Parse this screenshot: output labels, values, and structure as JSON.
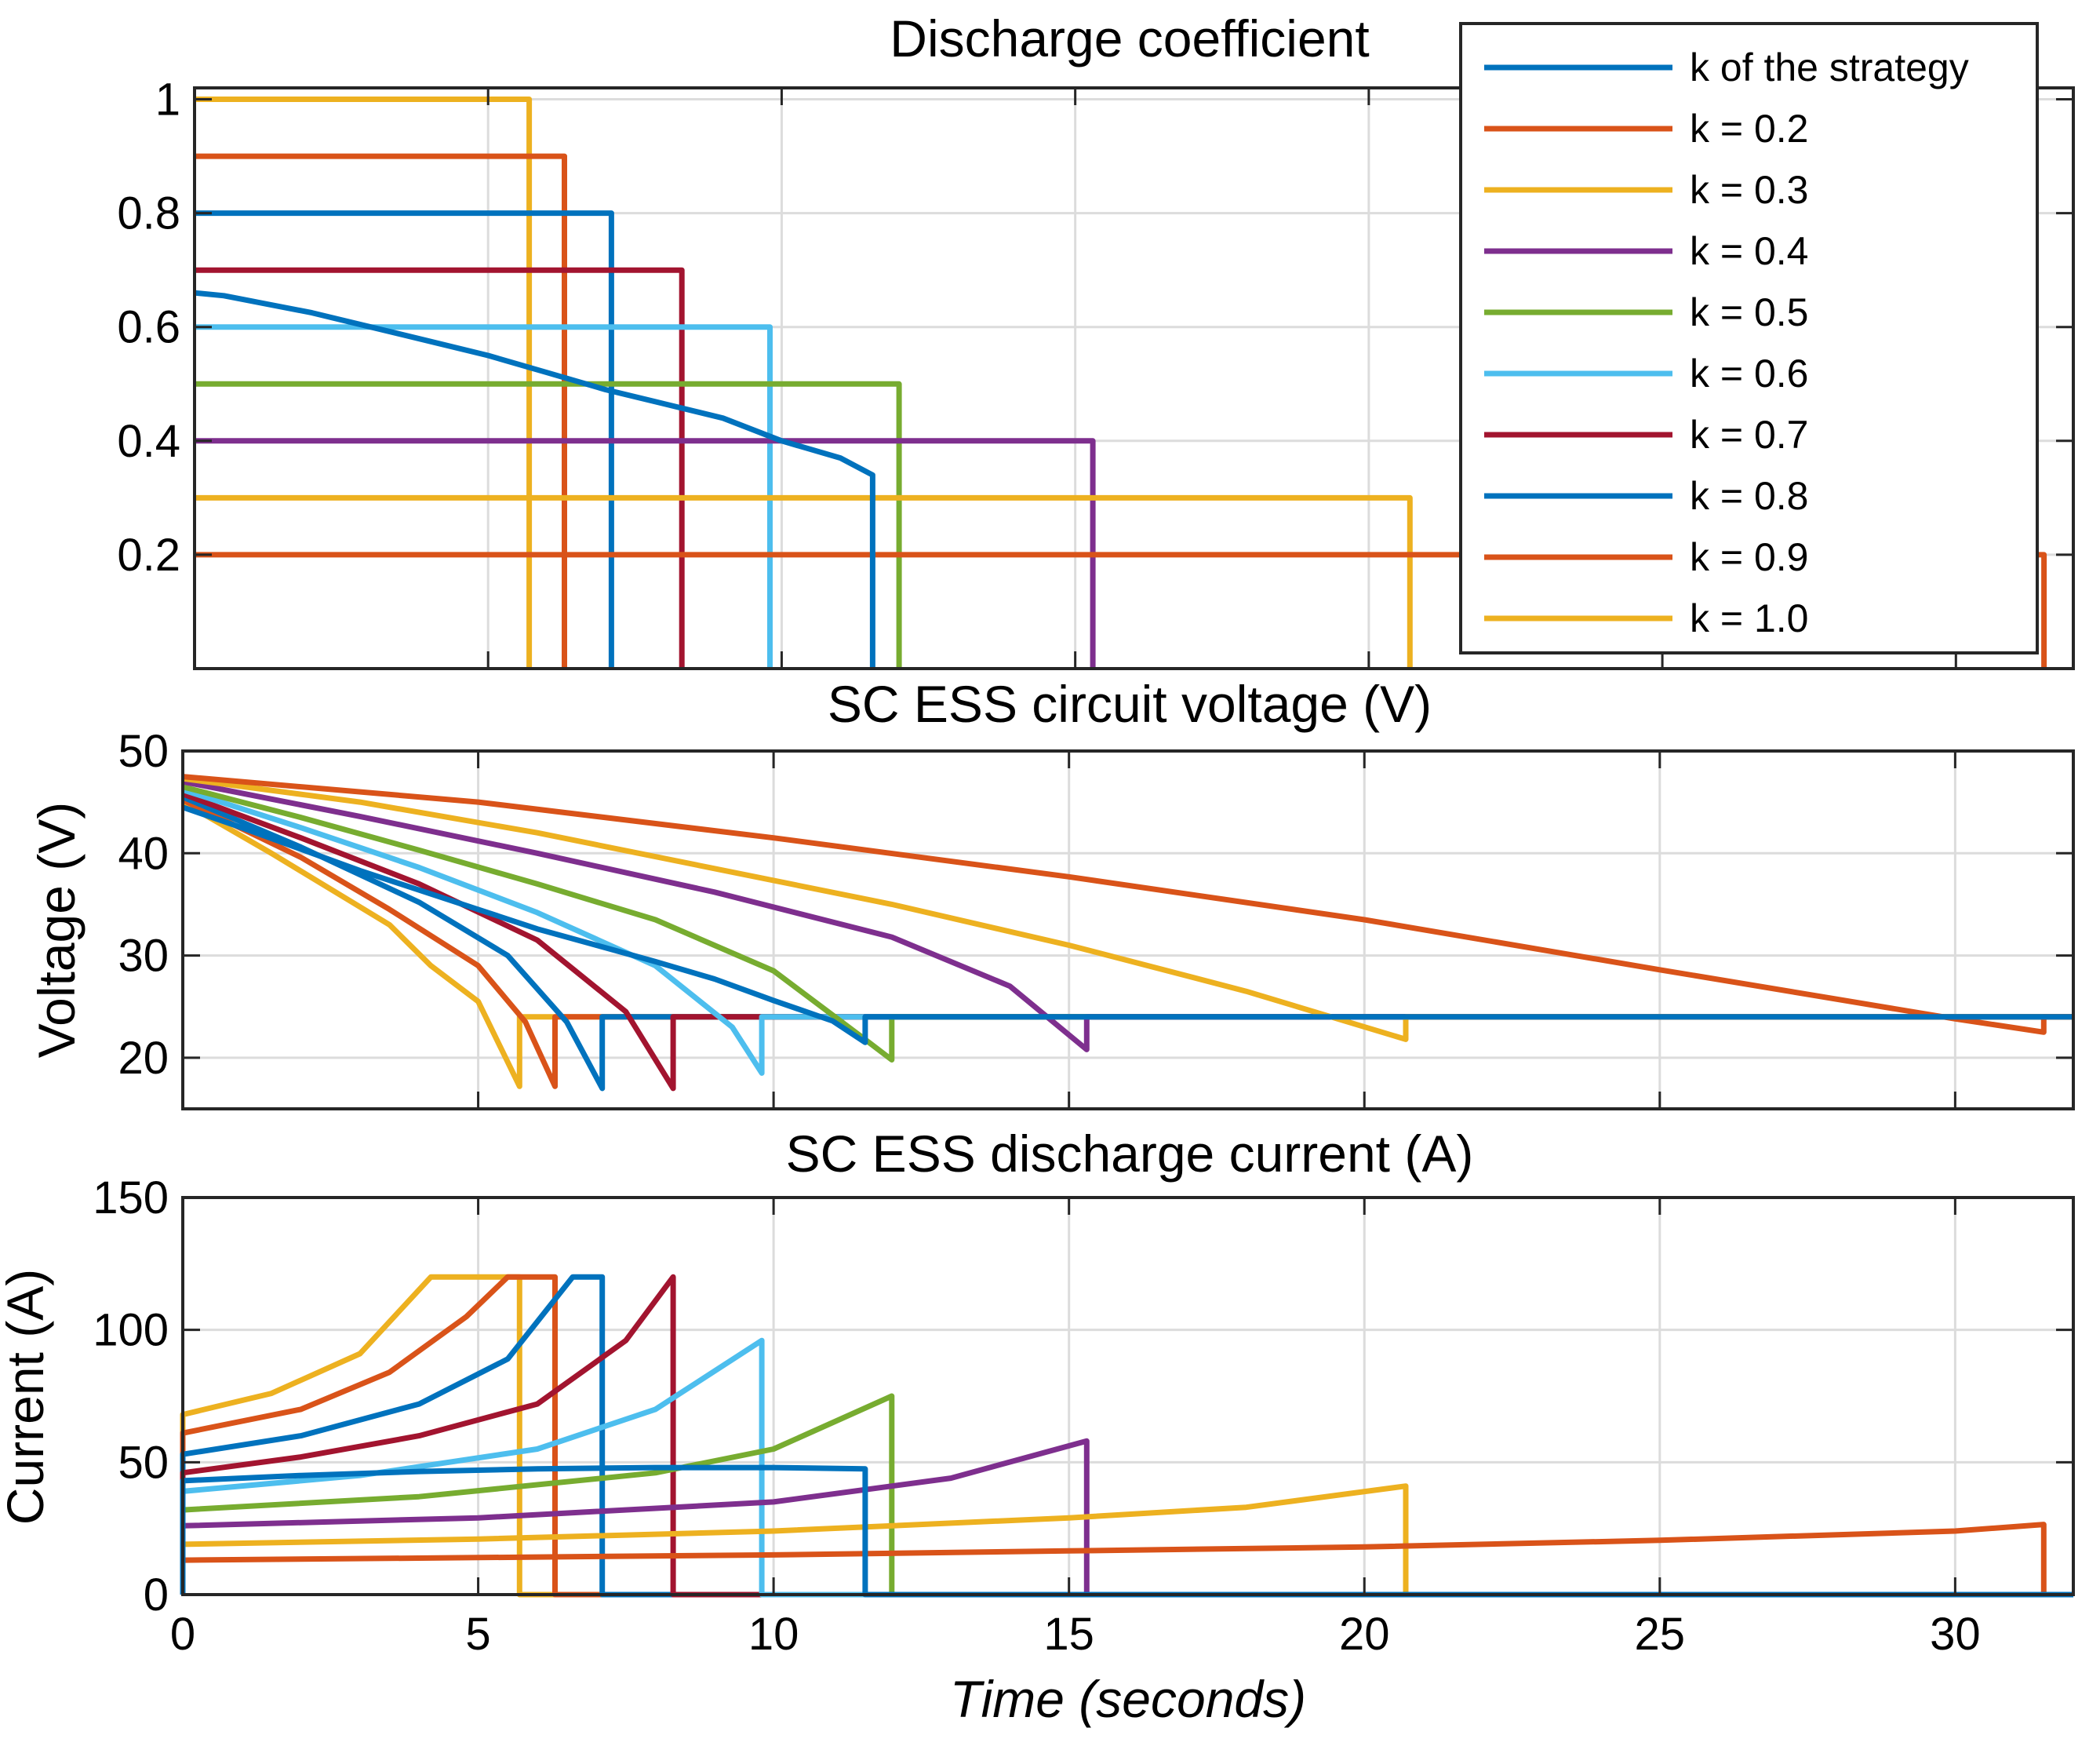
{
  "chart_data": [
    {
      "type": "line",
      "title": "Discharge coefficient",
      "xlabel": "",
      "ylabel": "",
      "xlim": [
        0,
        32
      ],
      "ylim": [
        0,
        1.02
      ],
      "xticks": [
        0,
        5,
        10,
        15,
        20,
        25,
        30
      ],
      "xtick_labels_visible": false,
      "yticks": [
        0.2,
        0.4,
        0.6,
        0.8,
        1
      ],
      "ytick_labels": [
        "0.2",
        "0.4",
        "0.6",
        "0.8",
        "1"
      ],
      "grid": true,
      "legend_position": "top-right",
      "series": [
        {
          "name": "k of the strategy",
          "color": "#0072BD",
          "points": [
            [
              0,
              0.66
            ],
            [
              0.5,
              0.655
            ],
            [
              1,
              0.645
            ],
            [
              2,
              0.625
            ],
            [
              3,
              0.6
            ],
            [
              4,
              0.575
            ],
            [
              5,
              0.55
            ],
            [
              6,
              0.52
            ],
            [
              7,
              0.49
            ],
            [
              8,
              0.465
            ],
            [
              9,
              0.44
            ],
            [
              10,
              0.4
            ],
            [
              11,
              0.37
            ],
            [
              11.55,
              0.34
            ],
            [
              11.55,
              0
            ]
          ]
        },
        {
          "name": "k = 0.2",
          "color": "#D95319",
          "points": [
            [
              0,
              0.2
            ],
            [
              31.5,
              0.2
            ],
            [
              31.5,
              0
            ]
          ]
        },
        {
          "name": "k = 0.3",
          "color": "#EDB120",
          "points": [
            [
              0,
              0.3
            ],
            [
              20.7,
              0.3
            ],
            [
              20.7,
              0
            ]
          ]
        },
        {
          "name": "k = 0.4",
          "color": "#7E2F8E",
          "points": [
            [
              0,
              0.4
            ],
            [
              15.3,
              0.4
            ],
            [
              15.3,
              0
            ]
          ]
        },
        {
          "name": "k = 0.5",
          "color": "#77AC30",
          "points": [
            [
              0,
              0.5
            ],
            [
              12,
              0.5
            ],
            [
              12,
              0
            ]
          ]
        },
        {
          "name": "k = 0.6",
          "color": "#4DBEEE",
          "points": [
            [
              0,
              0.6
            ],
            [
              9.8,
              0.6
            ],
            [
              9.8,
              0
            ]
          ]
        },
        {
          "name": "k = 0.7",
          "color": "#A2142F",
          "points": [
            [
              0,
              0.7
            ],
            [
              8.3,
              0.7
            ],
            [
              8.3,
              0
            ]
          ]
        },
        {
          "name": "k = 0.8",
          "color": "#0072BD",
          "points": [
            [
              0,
              0.8
            ],
            [
              7.1,
              0.8
            ],
            [
              7.1,
              0
            ]
          ]
        },
        {
          "name": "k = 0.9",
          "color": "#D95319",
          "points": [
            [
              0,
              0.9
            ],
            [
              6.3,
              0.9
            ],
            [
              6.3,
              0
            ]
          ]
        },
        {
          "name": "k = 1.0",
          "color": "#EDB120",
          "points": [
            [
              0,
              1
            ],
            [
              5.7,
              1
            ],
            [
              5.7,
              0
            ]
          ]
        }
      ]
    },
    {
      "type": "line",
      "title": "SC ESS circuit voltage (V)",
      "xlabel": "",
      "ylabel": "Voltage (V)",
      "xlim": [
        0,
        32
      ],
      "ylim": [
        15,
        50
      ],
      "xticks": [
        0,
        5,
        10,
        15,
        20,
        25,
        30
      ],
      "xtick_labels_visible": false,
      "yticks": [
        20,
        30,
        40,
        50
      ],
      "ytick_labels": [
        "20",
        "30",
        "40",
        "50"
      ],
      "grid": true,
      "series": [
        {
          "name": "k of the strategy",
          "color": "#0072BD",
          "points": [
            [
              0,
              44.5
            ],
            [
              1,
              42.5
            ],
            [
              2,
              40.4
            ],
            [
              3,
              38.3
            ],
            [
              4,
              36.4
            ],
            [
              5,
              34.5
            ],
            [
              6,
              32.6
            ],
            [
              7,
              31
            ],
            [
              8,
              29.4
            ],
            [
              9,
              27.7
            ],
            [
              10,
              25.6
            ],
            [
              11,
              23.6
            ],
            [
              11.55,
              21.5
            ],
            [
              11.55,
              24
            ],
            [
              32,
              24
            ]
          ]
        },
        {
          "name": "k = 0.2",
          "color": "#D95319",
          "points": [
            [
              0,
              47.5
            ],
            [
              5,
              45
            ],
            [
              10,
              41.5
            ],
            [
              15,
              37.7
            ],
            [
              20,
              33.5
            ],
            [
              25,
              28.6
            ],
            [
              30,
              23.8
            ],
            [
              31.5,
              22.5
            ],
            [
              31.5,
              24
            ],
            [
              32,
              24
            ]
          ]
        },
        {
          "name": "k = 0.3",
          "color": "#EDB120",
          "points": [
            [
              0,
              47.3
            ],
            [
              3,
              45
            ],
            [
              6,
              42
            ],
            [
              9,
              38.5
            ],
            [
              12,
              35
            ],
            [
              15,
              31
            ],
            [
              18,
              26.5
            ],
            [
              20.7,
              21.8
            ],
            [
              20.7,
              24
            ],
            [
              32,
              24
            ]
          ]
        },
        {
          "name": "k = 0.4",
          "color": "#7E2F8E",
          "points": [
            [
              0,
              47
            ],
            [
              3,
              43.6
            ],
            [
              6,
              40
            ],
            [
              9,
              36.2
            ],
            [
              12,
              31.8
            ],
            [
              14,
              27
            ],
            [
              15.3,
              20.8
            ],
            [
              15.3,
              24
            ],
            [
              32,
              24
            ]
          ]
        },
        {
          "name": "k = 0.5",
          "color": "#77AC30",
          "points": [
            [
              0,
              46.5
            ],
            [
              2,
              43.5
            ],
            [
              4,
              40.3
            ],
            [
              6,
              37
            ],
            [
              8,
              33.5
            ],
            [
              10,
              28.5
            ],
            [
              11.5,
              22
            ],
            [
              12,
              19.8
            ],
            [
              12,
              24
            ],
            [
              32,
              24
            ]
          ]
        },
        {
          "name": "k = 0.6",
          "color": "#4DBEEE",
          "points": [
            [
              0,
              46.2
            ],
            [
              2,
              42.5
            ],
            [
              4,
              38.6
            ],
            [
              6,
              34.2
            ],
            [
              8,
              29
            ],
            [
              9.3,
              23
            ],
            [
              9.8,
              18.5
            ],
            [
              9.8,
              24
            ],
            [
              32,
              24
            ]
          ]
        },
        {
          "name": "k = 0.7",
          "color": "#A2142F",
          "points": [
            [
              0,
              45.8
            ],
            [
              2,
              41.5
            ],
            [
              4,
              37
            ],
            [
              6,
              31.5
            ],
            [
              7.5,
              24.5
            ],
            [
              8.3,
              17
            ],
            [
              8.3,
              24
            ],
            [
              32,
              24
            ]
          ]
        },
        {
          "name": "k = 0.8",
          "color": "#0072BD",
          "points": [
            [
              0,
              45.5
            ],
            [
              2,
              40.6
            ],
            [
              4,
              35.2
            ],
            [
              5.5,
              30
            ],
            [
              6.5,
              23.5
            ],
            [
              7.1,
              17
            ],
            [
              7.1,
              24
            ],
            [
              32,
              24
            ]
          ]
        },
        {
          "name": "k = 0.9",
          "color": "#D95319",
          "points": [
            [
              0,
              45.2
            ],
            [
              2,
              39.6
            ],
            [
              3.5,
              34.5
            ],
            [
              5,
              29
            ],
            [
              5.8,
              23.5
            ],
            [
              6.3,
              17.2
            ],
            [
              6.3,
              24
            ],
            [
              32,
              24
            ]
          ]
        },
        {
          "name": "k = 1.0",
          "color": "#EDB120",
          "points": [
            [
              0,
              45
            ],
            [
              1.5,
              40
            ],
            [
              3.5,
              33
            ],
            [
              4.2,
              29
            ],
            [
              5,
              25.5
            ],
            [
              5.7,
              17.2
            ],
            [
              5.7,
              24
            ],
            [
              32,
              24
            ]
          ]
        }
      ]
    },
    {
      "type": "line",
      "title": "SC ESS discharge current (A)",
      "xlabel": "Time (seconds)",
      "ylabel": "Current (A)",
      "xlim": [
        0,
        32
      ],
      "ylim": [
        0,
        150
      ],
      "xticks": [
        0,
        5,
        10,
        15,
        20,
        25,
        30
      ],
      "xtick_labels": [
        "0",
        "5",
        "10",
        "15",
        "20",
        "25",
        "30"
      ],
      "yticks": [
        0,
        50,
        100,
        150
      ],
      "ytick_labels": [
        "0",
        "50",
        "100",
        "150"
      ],
      "grid": true,
      "series": [
        {
          "name": "k of the strategy",
          "color": "#0072BD",
          "points": [
            [
              0,
              0
            ],
            [
              0,
              43
            ],
            [
              2,
              45
            ],
            [
              4,
              46.5
            ],
            [
              6,
              47.5
            ],
            [
              8,
              48
            ],
            [
              10,
              48
            ],
            [
              11.55,
              47.5
            ],
            [
              11.55,
              0
            ],
            [
              32,
              0
            ]
          ]
        },
        {
          "name": "k = 0.2",
          "color": "#D95319",
          "points": [
            [
              0,
              0
            ],
            [
              0,
              13
            ],
            [
              5,
              14
            ],
            [
              10,
              15
            ],
            [
              15,
              16.5
            ],
            [
              20,
              18
            ],
            [
              25,
              20.5
            ],
            [
              30,
              24
            ],
            [
              31.5,
              26.5
            ],
            [
              31.5,
              0
            ],
            [
              32,
              0
            ]
          ]
        },
        {
          "name": "k = 0.3",
          "color": "#EDB120",
          "points": [
            [
              0,
              0
            ],
            [
              0,
              19
            ],
            [
              5,
              21
            ],
            [
              10,
              24
            ],
            [
              15,
              29
            ],
            [
              18,
              33
            ],
            [
              20.7,
              41
            ],
            [
              20.7,
              0
            ],
            [
              32,
              0
            ]
          ]
        },
        {
          "name": "k = 0.4",
          "color": "#7E2F8E",
          "points": [
            [
              0,
              0
            ],
            [
              0,
              26
            ],
            [
              5,
              29
            ],
            [
              10,
              35
            ],
            [
              13,
              44
            ],
            [
              15.3,
              58
            ],
            [
              15.3,
              0
            ],
            [
              32,
              0
            ]
          ]
        },
        {
          "name": "k = 0.5",
          "color": "#77AC30",
          "points": [
            [
              0,
              0
            ],
            [
              0,
              32
            ],
            [
              4,
              37
            ],
            [
              8,
              46
            ],
            [
              10,
              55
            ],
            [
              12,
              75
            ],
            [
              12,
              0
            ],
            [
              32,
              0
            ]
          ]
        },
        {
          "name": "k = 0.6",
          "color": "#4DBEEE",
          "points": [
            [
              0,
              0
            ],
            [
              0,
              39
            ],
            [
              3,
              45
            ],
            [
              6,
              55
            ],
            [
              8,
              70
            ],
            [
              9.8,
              96
            ],
            [
              9.8,
              0
            ],
            [
              32,
              0
            ]
          ]
        },
        {
          "name": "k = 0.7",
          "color": "#A2142F",
          "points": [
            [
              0,
              0
            ],
            [
              0,
              46
            ],
            [
              2,
              52
            ],
            [
              4,
              60
            ],
            [
              6,
              72
            ],
            [
              7.5,
              96
            ],
            [
              8.3,
              120
            ],
            [
              8.3,
              0
            ],
            [
              32,
              0
            ]
          ]
        },
        {
          "name": "k = 0.8",
          "color": "#0072BD",
          "points": [
            [
              0,
              0
            ],
            [
              0,
              53
            ],
            [
              2,
              60
            ],
            [
              4,
              72
            ],
            [
              5.5,
              89
            ],
            [
              6.6,
              120
            ],
            [
              7.1,
              120
            ],
            [
              7.1,
              0
            ],
            [
              32,
              0
            ]
          ]
        },
        {
          "name": "k = 0.9",
          "color": "#D95319",
          "points": [
            [
              0,
              0
            ],
            [
              0,
              61
            ],
            [
              2,
              70
            ],
            [
              3.5,
              84
            ],
            [
              4.8,
              105
            ],
            [
              5.5,
              120
            ],
            [
              6.3,
              120
            ],
            [
              6.3,
              0
            ],
            [
              32,
              0
            ]
          ]
        },
        {
          "name": "k = 1.0",
          "color": "#EDB120",
          "points": [
            [
              0,
              0
            ],
            [
              0,
              68
            ],
            [
              1.5,
              76
            ],
            [
              3,
              91
            ],
            [
              4.2,
              120
            ],
            [
              5.7,
              120
            ],
            [
              5.7,
              0
            ],
            [
              32,
              0
            ]
          ]
        }
      ]
    }
  ]
}
